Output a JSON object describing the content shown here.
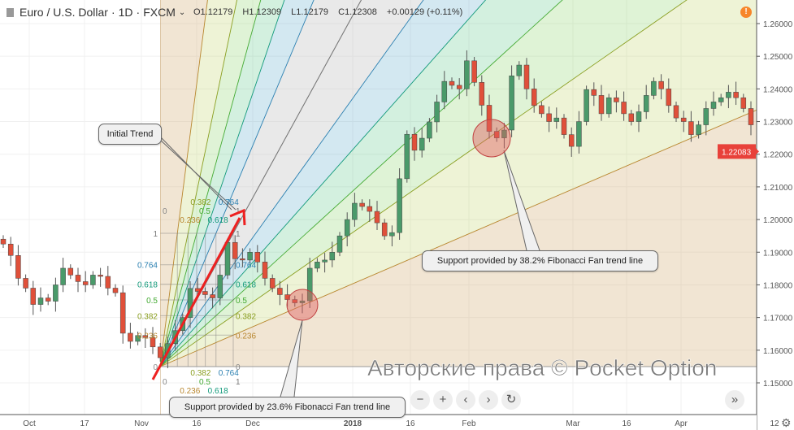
{
  "header": {
    "symbol": "Euro / U.S. Dollar",
    "interval": "1D",
    "exchange": "FXCM",
    "sep": "·"
  },
  "ohlc": {
    "open": "O1.12179",
    "high": "H1.12309",
    "low": "L1.12179",
    "close": "C1.12308",
    "change": "+0.00129 (+0.11%)"
  },
  "alert_icon": "!",
  "price_axis": {
    "labels": [
      "1.26000",
      "1.25000",
      "1.24000",
      "1.23000",
      "1.22000",
      "1.21000",
      "1.20000",
      "1.19000",
      "1.18000",
      "1.17000",
      "1.16000",
      "1.15000"
    ],
    "values": [
      1.26,
      1.25,
      1.24,
      1.23,
      1.22,
      1.21,
      1.2,
      1.19,
      1.18,
      1.17,
      1.16,
      1.15
    ],
    "current_price": "1.22083",
    "current_price_value": 1.22083,
    "current_price_color": "#e8413a"
  },
  "time_axis": {
    "labels": [
      "Oct",
      "17",
      "Nov",
      "16",
      "Dec",
      "2018",
      "16",
      "Feb",
      "Mar",
      "16",
      "Apr",
      "12"
    ]
  },
  "colors": {
    "up": "#4a9a6a",
    "down": "#e0503a",
    "arrow": "#ee2020",
    "circle": "#e06060"
  },
  "candles_close": [
    1.1925,
    1.189,
    1.182,
    1.179,
    1.174,
    1.176,
    1.175,
    1.18,
    1.1851,
    1.183,
    1.181,
    1.18,
    1.183,
    1.1826,
    1.179,
    1.1776,
    1.1652,
    1.1627,
    1.1645,
    1.1639,
    1.161,
    1.1577,
    1.162,
    1.166,
    1.17,
    1.1789,
    1.178,
    1.177,
    1.176,
    1.183,
    1.193,
    1.188,
    1.1876,
    1.19,
    1.187,
    1.182,
    1.179,
    1.177,
    1.1755,
    1.1745,
    1.1751,
    1.1851,
    1.187,
    1.1876,
    1.19,
    1.195,
    1.2,
    1.205,
    1.204,
    1.2025,
    1.199,
    1.195,
    1.196,
    1.2125,
    1.2261,
    1.2212,
    1.2249,
    1.2299,
    1.236,
    1.2423,
    1.2411,
    1.24,
    1.2486,
    1.242,
    1.235,
    1.227,
    1.225,
    1.2274,
    1.244,
    1.2473,
    1.24,
    1.2349,
    1.2324,
    1.23,
    1.2311,
    1.226,
    1.2224,
    1.23,
    1.2398,
    1.238,
    1.2324,
    1.2373,
    1.236,
    1.2324,
    1.23,
    1.233,
    1.238,
    1.2423,
    1.24,
    1.2349,
    1.2311,
    1.23,
    1.226,
    1.229,
    1.234,
    1.236,
    1.2373,
    1.239,
    1.2373,
    1.234,
    1.229
  ],
  "fib_fan": {
    "levels": [
      {
        "value": 0,
        "label": "0",
        "color": "#888888"
      },
      {
        "value": 0.236,
        "label": "0.236",
        "color": "#b8862e"
      },
      {
        "value": 0.382,
        "label": "0.382",
        "color": "#8a9e20"
      },
      {
        "value": 0.5,
        "label": "0.5",
        "color": "#44aa33"
      },
      {
        "value": 0.618,
        "label": "0.618",
        "color": "#11997a"
      },
      {
        "value": 0.764,
        "label": "0.764",
        "color": "#2a7fb0"
      },
      {
        "value": 1,
        "label": "1",
        "color": "#777777"
      }
    ]
  },
  "annotations": {
    "initial_trend": "Initial Trend",
    "support_382": "Support provided by 38.2% Fibonacci Fan trend line",
    "support_236": "Support provided by 23.6% Fibonacci Fan trend line"
  },
  "controls": {
    "zoom_out": "−",
    "zoom_in": "+",
    "prev": "‹",
    "next": "›",
    "reset": "↻",
    "go_latest": "»",
    "settings": "⚙"
  },
  "watermark": "Авторские права © Pocket Option"
}
